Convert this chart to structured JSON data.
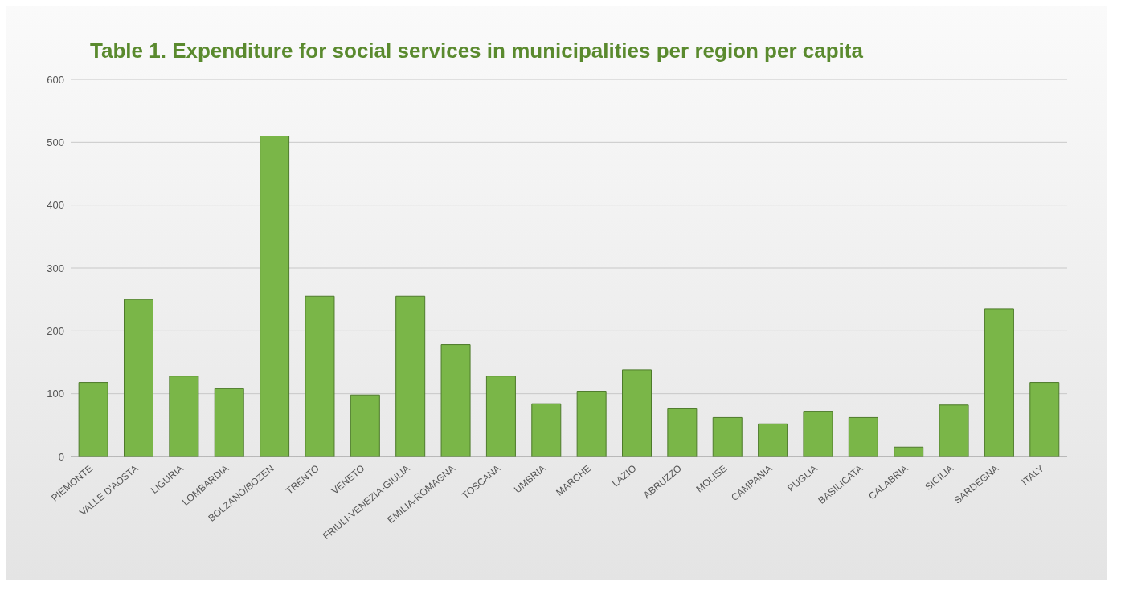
{
  "chart_data": {
    "type": "bar",
    "title": "Table 1. Expenditure for social services in municipalities per region per capita",
    "categories": [
      "PIEMONTE",
      "VALLE D'AOSTA",
      "LIGURIA",
      "LOMBARDIA",
      "BOLZANO/BOZEN",
      "TRENTO",
      "VENETO",
      "FRIULI-VENEZIA-GIULIA",
      "EMILIA-ROMAGNA",
      "TOSCANA",
      "UMBRIA",
      "MARCHE",
      "LAZIO",
      "ABRUZZO",
      "MOLISE",
      "CAMPANIA",
      "PUGLIA",
      "BASILICATA",
      "CALABRIA",
      "SICILIA",
      "SARDEGNA",
      "ITALY"
    ],
    "values": [
      118,
      250,
      128,
      108,
      510,
      255,
      98,
      255,
      178,
      128,
      84,
      104,
      138,
      76,
      62,
      52,
      72,
      62,
      15,
      82,
      235,
      118
    ],
    "color": "#7ab648",
    "ylim": [
      0,
      600
    ],
    "yticks": [
      0,
      100,
      200,
      300,
      400,
      500,
      600
    ],
    "grid": "y"
  }
}
